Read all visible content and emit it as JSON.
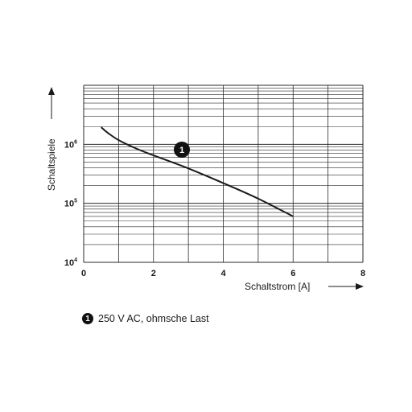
{
  "chart_data": {
    "type": "line",
    "xlabel": "Schaltstrom [A]",
    "ylabel": "Schaltspiele",
    "xlim": [
      0,
      8
    ],
    "ylim": [
      10000,
      10000000
    ],
    "y_scale": "log",
    "grid": true,
    "x_ticks": [
      "0",
      "2",
      "4",
      "6",
      "8"
    ],
    "y_ticks": [
      {
        "base": "10",
        "exp": "4",
        "value": 10000
      },
      {
        "base": "10",
        "exp": "5",
        "value": 100000
      },
      {
        "base": "10",
        "exp": "6",
        "value": 1000000
      }
    ],
    "series": [
      {
        "marker": "1",
        "x": [
          0.5,
          0.7,
          1.0,
          1.5,
          2.0,
          3.0,
          4.0,
          5.0,
          6.0
        ],
        "y": [
          1950000,
          1550000,
          1180000,
          850000,
          650000,
          390000,
          220000,
          120000,
          60000
        ]
      }
    ],
    "annotations": [
      {
        "marker": "1",
        "text": "250 V AC, ohmsche Last"
      }
    ]
  }
}
